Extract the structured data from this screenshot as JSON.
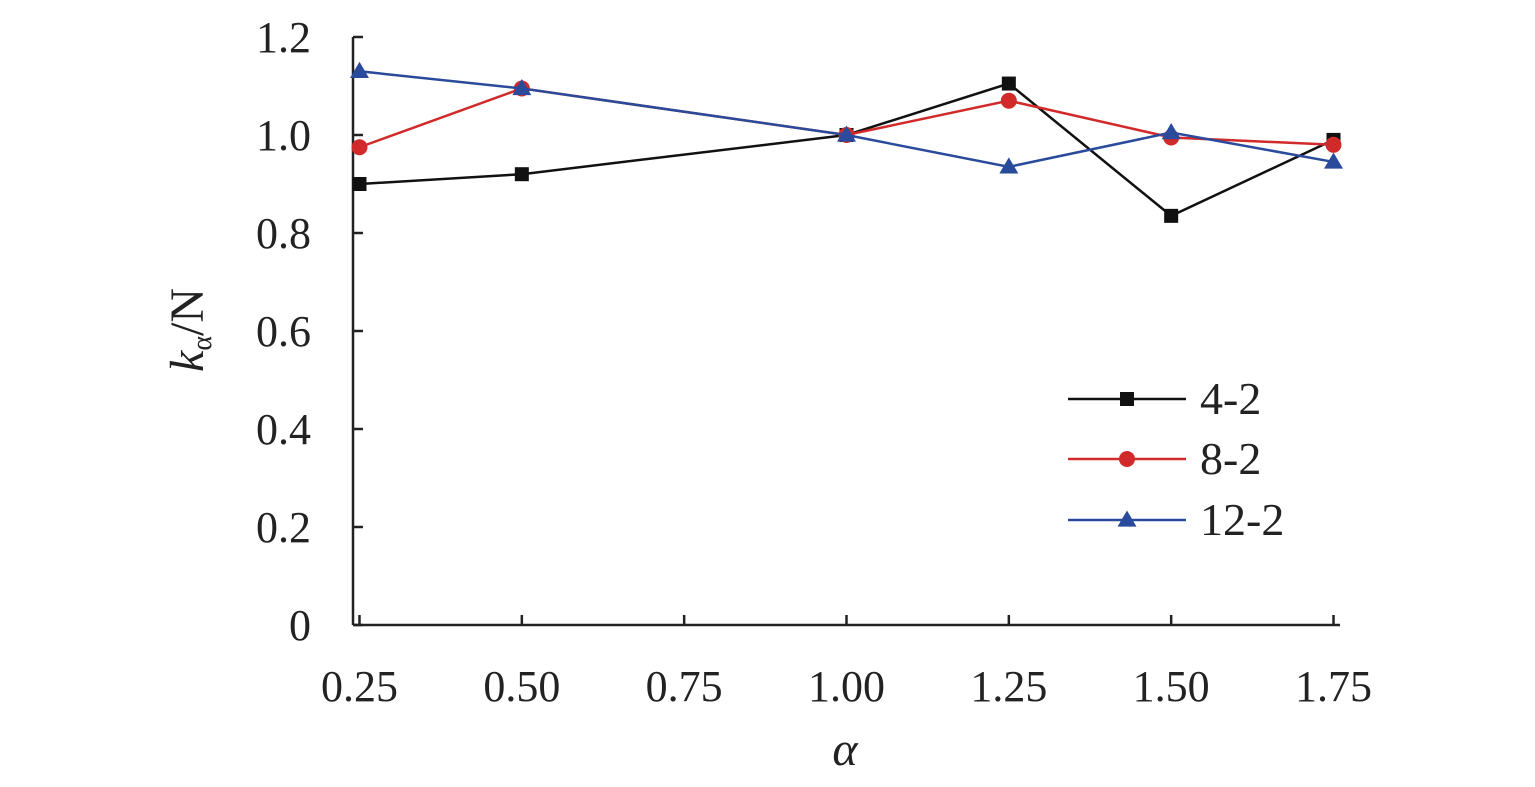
{
  "chart_data": {
    "type": "line",
    "xlabel": "α",
    "ylabel_main": "k",
    "ylabel_sub": "α",
    "ylabel_suffix": "/N",
    "x": [
      0.25,
      0.5,
      1.0,
      1.25,
      1.5,
      1.75
    ],
    "xlim": [
      0.24,
      1.76
    ],
    "ylim": [
      0,
      1.2
    ],
    "x_ticks": [
      0.25,
      0.5,
      0.75,
      1.0,
      1.25,
      1.5,
      1.75
    ],
    "x_tick_labels": [
      "0.25",
      "0.50",
      "0.75",
      "1.00",
      "1.25",
      "1.50",
      "1.75"
    ],
    "y_ticks": [
      0,
      0.2,
      0.4,
      0.6,
      0.8,
      1.0,
      1.2
    ],
    "y_tick_labels": [
      "0",
      "0.2",
      "0.4",
      "0.6",
      "0.8",
      "1.0",
      "1.2"
    ],
    "grid": false,
    "legend_position": "right",
    "series": [
      {
        "name": "4-2",
        "color": "#111111",
        "marker": "square",
        "values": [
          0.9,
          0.92,
          1.0,
          1.105,
          0.835,
          0.99
        ]
      },
      {
        "name": "8-2",
        "color": "#d12a2a",
        "marker": "circle",
        "values": [
          0.975,
          1.095,
          1.0,
          1.07,
          0.995,
          0.98
        ]
      },
      {
        "name": "12-2",
        "color": "#2a4a9c",
        "marker": "triangle",
        "values": [
          1.13,
          1.095,
          1.0,
          0.935,
          1.005,
          0.945
        ]
      }
    ]
  }
}
